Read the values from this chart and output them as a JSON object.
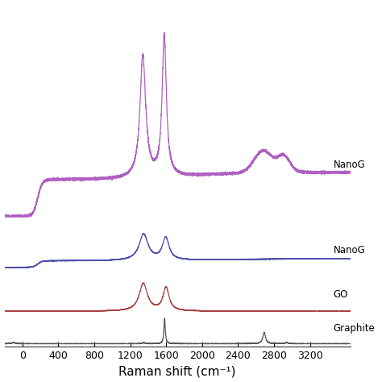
{
  "x_min": -200,
  "x_max": 3650,
  "xlabel": "Raman shift (cm⁻¹)",
  "xlabel_fontsize": 11,
  "tick_fontsize": 9,
  "background_color": "#ffffff",
  "line_width": 0.9,
  "colors_bottom_to_top": [
    "#555555",
    "#a84040",
    "#5050b0",
    "#b060c0"
  ],
  "label_texts": [
    "Graphite",
    "GO",
    "NanoG",
    "NanoG"
  ],
  "xticks": [
    0,
    400,
    800,
    1200,
    1600,
    2000,
    2400,
    2800,
    3200
  ]
}
